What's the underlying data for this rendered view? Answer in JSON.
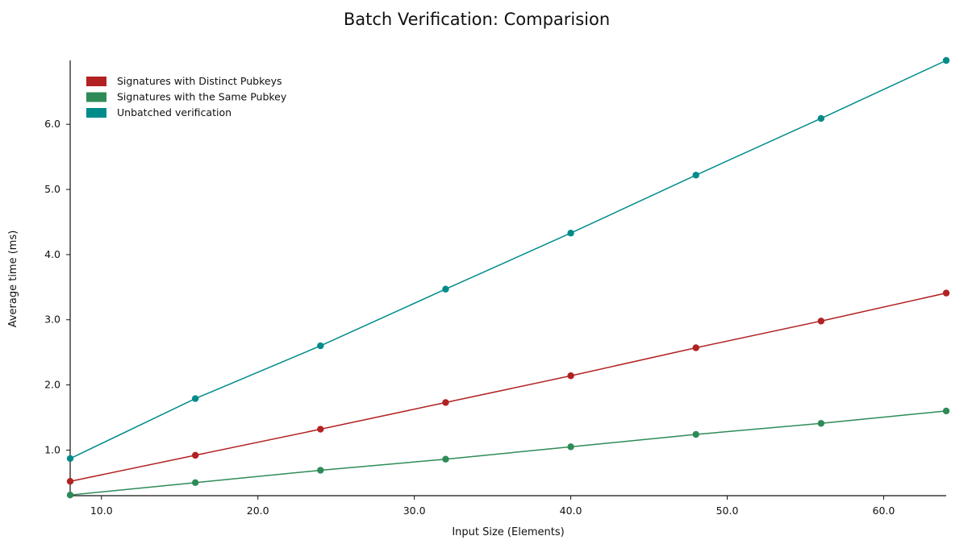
{
  "chart_data": {
    "type": "line",
    "title": "Batch Verification: Comparision",
    "xlabel": "Input Size (Elements)",
    "ylabel": "Average time (ms)",
    "x": [
      8,
      16,
      24,
      32,
      40,
      48,
      56,
      64
    ],
    "xlim": [
      8,
      64
    ],
    "ylim": [
      0.3,
      6.98
    ],
    "xticks": [
      10,
      20,
      30,
      40,
      50,
      60
    ],
    "xtick_labels": [
      "10.0",
      "20.0",
      "30.0",
      "40.0",
      "50.0",
      "60.0"
    ],
    "yticks": [
      1,
      2,
      3,
      4,
      5,
      6
    ],
    "ytick_labels": [
      "1.0",
      "2.0",
      "3.0",
      "4.0",
      "5.0",
      "6.0"
    ],
    "grid": false,
    "legend_position": "top-left",
    "series": [
      {
        "name": "Signatures with Distinct Pubkeys",
        "color": "#b22222",
        "values": [
          0.52,
          0.92,
          1.32,
          1.73,
          2.14,
          2.57,
          2.98,
          3.41
        ]
      },
      {
        "name": "Signatures with the Same Pubkey",
        "color": "#2e8b57",
        "values": [
          0.31,
          0.5,
          0.69,
          0.86,
          1.05,
          1.24,
          1.41,
          1.6
        ]
      },
      {
        "name": "Unbatched verification",
        "color": "#008b8b",
        "values": [
          0.87,
          1.79,
          2.6,
          3.47,
          4.33,
          5.22,
          6.09,
          6.98
        ]
      }
    ]
  }
}
